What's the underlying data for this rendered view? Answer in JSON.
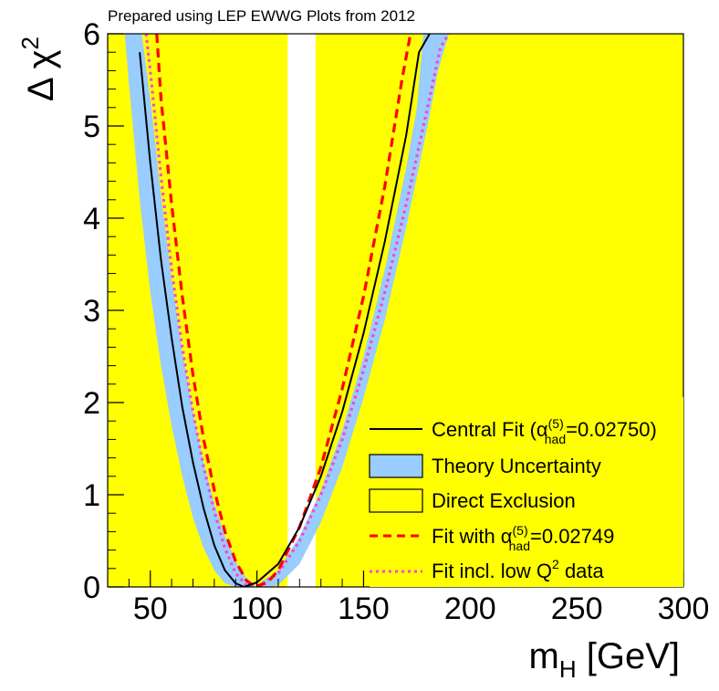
{
  "chart_data": {
    "type": "line",
    "caption": "Prepared using LEP EWWG Plots from 2012",
    "xlabel": {
      "main": "m",
      "sub": "H",
      "rest": " [GeV]"
    },
    "ylabel": {
      "main": "Δ χ",
      "sup": "2"
    },
    "xlim": [
      30,
      300
    ],
    "ylim": [
      0,
      6
    ],
    "xticks": [
      50,
      100,
      150,
      200,
      250,
      300
    ],
    "yticks": [
      0,
      1,
      2,
      3,
      4,
      5,
      6
    ],
    "colors": {
      "exclusion": "#ffff00",
      "band": "#99ccff",
      "central": "#000000",
      "dashed": "#ff0000",
      "dotted": "#ff44cc"
    },
    "excluded_regions": [
      [
        30,
        114.4
      ],
      [
        127.5,
        300
      ]
    ],
    "series": [
      {
        "name": "Central Fit",
        "style": "solid",
        "x": [
          45,
          50,
          55,
          60,
          65,
          70,
          75,
          80,
          85,
          90,
          94,
          100,
          110,
          120,
          130,
          140,
          150,
          160,
          170,
          176,
          181
        ],
        "y": [
          5.8,
          4.6,
          3.55,
          2.7,
          1.95,
          1.35,
          0.85,
          0.45,
          0.18,
          0.04,
          0.0,
          0.05,
          0.25,
          0.65,
          1.2,
          1.9,
          2.75,
          3.75,
          4.9,
          5.8,
          6.0
        ]
      },
      {
        "name": "Fit with α_had^(5)=0.02749",
        "style": "dashed",
        "x": [
          53,
          55,
          60,
          65,
          70,
          75,
          80,
          85,
          90,
          95,
          99,
          105,
          110,
          120,
          130,
          140,
          150,
          160,
          168,
          172
        ],
        "y": [
          6.0,
          5.3,
          4.15,
          3.15,
          2.3,
          1.6,
          1.05,
          0.6,
          0.28,
          0.07,
          0.0,
          0.05,
          0.18,
          0.65,
          1.3,
          2.15,
          3.15,
          4.35,
          5.5,
          6.0
        ]
      },
      {
        "name": "Fit incl. low Q2 data",
        "style": "dotted",
        "x": [
          48,
          50,
          55,
          60,
          65,
          70,
          75,
          80,
          85,
          90,
          95,
          100,
          110,
          120,
          130,
          140,
          150,
          160,
          170,
          180,
          186,
          190
        ],
        "y": [
          6.0,
          5.6,
          4.45,
          3.45,
          2.6,
          1.9,
          1.3,
          0.82,
          0.42,
          0.15,
          0.02,
          0.0,
          0.15,
          0.5,
          1.0,
          1.6,
          2.35,
          3.2,
          4.15,
          5.2,
          5.85,
          6.0
        ]
      }
    ],
    "band": {
      "name": "Theory Uncertainty",
      "lower": {
        "x": [
          38,
          40,
          45,
          50,
          55,
          60,
          65,
          70,
          75,
          80,
          85,
          90,
          95,
          100,
          110,
          120,
          130,
          140,
          150,
          160,
          170,
          175,
          178
        ],
        "y": [
          6.0,
          5.45,
          4.2,
          3.2,
          2.4,
          1.75,
          1.2,
          0.75,
          0.42,
          0.18,
          0.04,
          0.0,
          0.0,
          0.02,
          0.18,
          0.55,
          1.05,
          1.7,
          2.5,
          3.45,
          4.55,
          5.2,
          6.0
        ]
      },
      "upper": {
        "x": [
          46,
          50,
          55,
          60,
          65,
          70,
          75,
          80,
          85,
          90,
          95,
          100,
          105,
          110,
          120,
          130,
          140,
          150,
          160,
          170,
          180,
          185,
          190
        ],
        "y": [
          6.0,
          5.3,
          4.25,
          3.35,
          2.55,
          1.9,
          1.35,
          0.9,
          0.55,
          0.28,
          0.1,
          0.01,
          0.0,
          0.02,
          0.25,
          0.7,
          1.3,
          2.05,
          2.9,
          3.9,
          5.0,
          5.6,
          6.0
        ]
      }
    },
    "legend": {
      "position": "bottom-right",
      "central": {
        "text": "Central Fit (α",
        "sup": "(5)",
        "sub": "had",
        "rest": "=0.02750)"
      },
      "band": "Theory Uncertainty",
      "exclusion": "Direct Exclusion",
      "dashed": {
        "text": "Fit with α",
        "sup": "(5)",
        "sub": "had",
        "rest": "=0.02749"
      },
      "dotted": {
        "text": "Fit incl. low Q",
        "sup": "2",
        "rest": " data"
      }
    }
  }
}
